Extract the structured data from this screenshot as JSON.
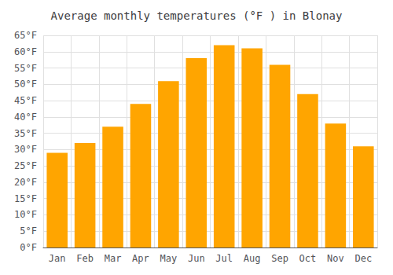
{
  "chart_data": {
    "type": "bar",
    "title": "Average monthly temperatures (°F ) in Blonay",
    "categories": [
      "Jan",
      "Feb",
      "Mar",
      "Apr",
      "May",
      "Jun",
      "Jul",
      "Aug",
      "Sep",
      "Oct",
      "Nov",
      "Dec"
    ],
    "values": [
      29,
      32,
      37,
      44,
      51,
      58,
      62,
      61,
      56,
      47,
      38,
      31
    ],
    "color": "#FFA500",
    "ylim": [
      0,
      65
    ],
    "yticks": [
      {
        "value": 0,
        "label": "0°F"
      },
      {
        "value": 5,
        "label": "5°F"
      },
      {
        "value": 10,
        "label": "10°F"
      },
      {
        "value": 15,
        "label": "15°F"
      },
      {
        "value": 20,
        "label": "20°F"
      },
      {
        "value": 25,
        "label": "25°F"
      },
      {
        "value": 30,
        "label": "30°F"
      },
      {
        "value": 35,
        "label": "35°F"
      },
      {
        "value": 40,
        "label": "40°F"
      },
      {
        "value": 45,
        "label": "45°F"
      },
      {
        "value": 50,
        "label": "50°F"
      },
      {
        "value": 55,
        "label": "55°F"
      },
      {
        "value": 60,
        "label": "60°F"
      },
      {
        "value": 65,
        "label": "65°F"
      }
    ],
    "grid": true
  }
}
